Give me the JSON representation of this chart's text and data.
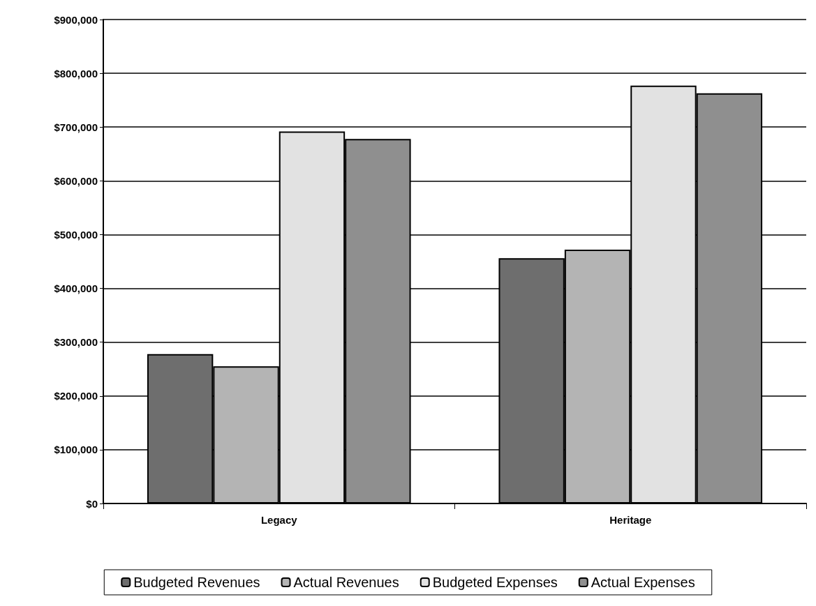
{
  "chart_data": {
    "type": "bar",
    "categories": [
      "Legacy",
      "Heritage"
    ],
    "series": [
      {
        "name": "Budgeted Revenues",
        "color": "#6e6e6e",
        "values": [
          278000,
          456000
        ]
      },
      {
        "name": "Actual Revenues",
        "color": "#b4b4b4",
        "values": [
          255000,
          472000
        ]
      },
      {
        "name": "Budgeted Expenses",
        "color": "#e2e2e2",
        "values": [
          692000,
          777000
        ]
      },
      {
        "name": "Actual Expenses",
        "color": "#8f8f8f",
        "values": [
          678000,
          763000
        ]
      }
    ],
    "ylim": [
      0,
      900000
    ],
    "yticks": [
      {
        "value": 0,
        "label": "$0"
      },
      {
        "value": 100000,
        "label": "$100,000"
      },
      {
        "value": 200000,
        "label": "$200,000"
      },
      {
        "value": 300000,
        "label": "$300,000"
      },
      {
        "value": 400000,
        "label": "$400,000"
      },
      {
        "value": 500000,
        "label": "$500,000"
      },
      {
        "value": 600000,
        "label": "$600,000"
      },
      {
        "value": 700000,
        "label": "$700,000"
      },
      {
        "value": 800000,
        "label": "$800,000"
      },
      {
        "value": 900000,
        "label": "$900,000"
      }
    ],
    "grid": "y",
    "legend": "bottom"
  }
}
